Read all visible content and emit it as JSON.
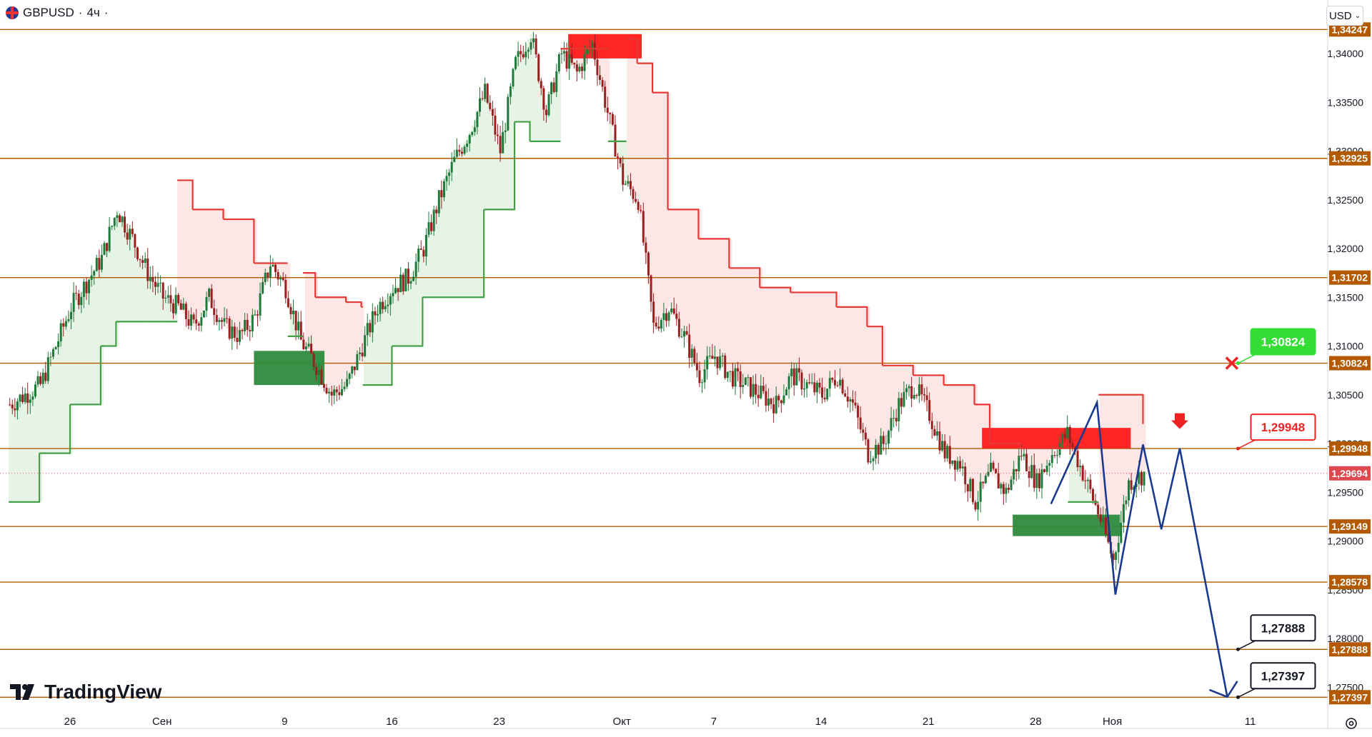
{
  "header": {
    "symbol": "GBPUSD",
    "interval": "4ч",
    "currency": "USD"
  },
  "branding": {
    "logo_text": "TradingView"
  },
  "colors": {
    "level_line": "#b35a00",
    "level_tag_bg": "#b35a00",
    "bull_candle": "#1e7a39",
    "bear_candle": "#9a2020",
    "supertrend_up": "#43a047",
    "supertrend_down": "#e53935",
    "fill_up": "#e6f4e6",
    "fill_down": "#fde6e6",
    "zone_supply": "#ff1a1a",
    "zone_demand": "#2e8b3e",
    "forecast": "#1a3a8f",
    "current_price": "#e0484f",
    "label_green": "#33dd33",
    "label_red": "#ee2222",
    "label_black": "#131722"
  },
  "chart_data": {
    "type": "candlestick",
    "symbol": "GBPUSD",
    "timeframe": "4ч",
    "ylim": [
      1.2705,
      1.3443
    ],
    "y_ticks": [
      1.34,
      1.335,
      1.33,
      1.325,
      1.32,
      1.315,
      1.31,
      1.305,
      1.3,
      1.295,
      1.29,
      1.285,
      1.28,
      1.275
    ],
    "y_tick_labels": [
      "1,34000",
      "1,33500",
      "1,33000",
      "1,32500",
      "1,32000",
      "1,31500",
      "1,31000",
      "1,30500",
      "1,30000",
      "1,29500",
      "1,29000",
      "1,28500",
      "1,28000",
      "1,27500"
    ],
    "x_tick_labels": [
      {
        "label": "26",
        "day": 0
      },
      {
        "label": "Сен",
        "day": 6
      },
      {
        "label": "9",
        "day": 14
      },
      {
        "label": "16",
        "day": 21
      },
      {
        "label": "23",
        "day": 28
      },
      {
        "label": "Окт",
        "day": 36
      },
      {
        "label": "7",
        "day": 42
      },
      {
        "label": "14",
        "day": 49
      },
      {
        "label": "21",
        "day": 56
      },
      {
        "label": "28",
        "day": 63
      },
      {
        "label": "Ноя",
        "day": 68
      },
      {
        "label": "11",
        "day": 77
      }
    ],
    "close_path": [
      [
        -4,
        1.304
      ],
      [
        -2,
        1.306
      ],
      [
        0,
        1.314
      ],
      [
        2,
        1.319
      ],
      [
        3,
        1.324
      ],
      [
        4,
        1.321
      ],
      [
        5,
        1.3175
      ],
      [
        6,
        1.315
      ],
      [
        7,
        1.314
      ],
      [
        8,
        1.312
      ],
      [
        9,
        1.315
      ],
      [
        10,
        1.312
      ],
      [
        11,
        1.311
      ],
      [
        12,
        1.313
      ],
      [
        13,
        1.3185
      ],
      [
        14,
        1.316
      ],
      [
        15,
        1.3105
      ],
      [
        16,
        1.308
      ],
      [
        17,
        1.305
      ],
      [
        18,
        1.306
      ],
      [
        19,
        1.31
      ],
      [
        20,
        1.314
      ],
      [
        21,
        1.316
      ],
      [
        22,
        1.317
      ],
      [
        23,
        1.32
      ],
      [
        24,
        1.325
      ],
      [
        25,
        1.329
      ],
      [
        26,
        1.332
      ],
      [
        27,
        1.336
      ],
      [
        28,
        1.33
      ],
      [
        29,
        1.339
      ],
      [
        30,
        1.342
      ],
      [
        31,
        1.334
      ],
      [
        32,
        1.34
      ],
      [
        33,
        1.338
      ],
      [
        34,
        1.341
      ],
      [
        35,
        1.334
      ],
      [
        36,
        1.327
      ],
      [
        37,
        1.325
      ],
      [
        38,
        1.312
      ],
      [
        39,
        1.314
      ],
      [
        40,
        1.311
      ],
      [
        41,
        1.307
      ],
      [
        42,
        1.309
      ],
      [
        43,
        1.307
      ],
      [
        44,
        1.306
      ],
      [
        45,
        1.305
      ],
      [
        46,
        1.304
      ],
      [
        47,
        1.307
      ],
      [
        48,
        1.306
      ],
      [
        49,
        1.305
      ],
      [
        50,
        1.307
      ],
      [
        51,
        1.304
      ],
      [
        52,
        1.299
      ],
      [
        53,
        1.3
      ],
      [
        54,
        1.304
      ],
      [
        55,
        1.306
      ],
      [
        56,
        1.303
      ],
      [
        57,
        1.299
      ],
      [
        58,
        1.298
      ],
      [
        59,
        1.294
      ],
      [
        60,
        1.297
      ],
      [
        61,
        1.295
      ],
      [
        62,
        1.299
      ],
      [
        63,
        1.296
      ],
      [
        64,
        1.299
      ],
      [
        65,
        1.301
      ],
      [
        66,
        1.297
      ],
      [
        67,
        1.293
      ],
      [
        68,
        1.288
      ],
      [
        69,
        1.296
      ],
      [
        70,
        1.2969
      ]
    ],
    "supertrend": [
      {
        "day": -4,
        "value": 1.294,
        "dir": "up"
      },
      {
        "day": -2,
        "value": 1.299,
        "dir": "up"
      },
      {
        "day": 0,
        "value": 1.304,
        "dir": "up"
      },
      {
        "day": 2,
        "value": 1.31,
        "dir": "up"
      },
      {
        "day": 3,
        "value": 1.3125,
        "dir": "up"
      },
      {
        "day": 5,
        "value": 1.3125,
        "dir": "up"
      },
      {
        "day": 6,
        "value": 1.3125,
        "dir": "up"
      },
      {
        "day": 7,
        "value": 1.327,
        "dir": "down"
      },
      {
        "day": 8,
        "value": 1.324,
        "dir": "down"
      },
      {
        "day": 10,
        "value": 1.323,
        "dir": "down"
      },
      {
        "day": 12,
        "value": 1.3185,
        "dir": "down"
      },
      {
        "day": 14,
        "value": 1.3185,
        "dir": "down"
      },
      {
        "day": 14.2,
        "value": 1.311,
        "dir": "up"
      },
      {
        "day": 15,
        "value": 1.311,
        "dir": "up"
      },
      {
        "day": 15.2,
        "value": 1.3175,
        "dir": "down"
      },
      {
        "day": 16,
        "value": 1.315,
        "dir": "down"
      },
      {
        "day": 18,
        "value": 1.3145,
        "dir": "down"
      },
      {
        "day": 19,
        "value": 1.314,
        "dir": "down"
      },
      {
        "day": 19.1,
        "value": 1.306,
        "dir": "up"
      },
      {
        "day": 21,
        "value": 1.31,
        "dir": "up"
      },
      {
        "day": 23,
        "value": 1.315,
        "dir": "up"
      },
      {
        "day": 25,
        "value": 1.315,
        "dir": "up"
      },
      {
        "day": 27,
        "value": 1.324,
        "dir": "up"
      },
      {
        "day": 29,
        "value": 1.333,
        "dir": "up"
      },
      {
        "day": 30,
        "value": 1.331,
        "dir": "up"
      },
      {
        "day": 32,
        "value": 1.3405,
        "dir": "down"
      },
      {
        "day": 35,
        "value": 1.3405,
        "dir": "down"
      },
      {
        "day": 35.1,
        "value": 1.331,
        "dir": "up"
      },
      {
        "day": 36.3,
        "value": 1.331,
        "dir": "up"
      },
      {
        "day": 36.3,
        "value": 1.3415,
        "dir": "down"
      },
      {
        "day": 37,
        "value": 1.339,
        "dir": "down"
      },
      {
        "day": 38,
        "value": 1.336,
        "dir": "down"
      },
      {
        "day": 39,
        "value": 1.324,
        "dir": "down"
      },
      {
        "day": 41,
        "value": 1.321,
        "dir": "down"
      },
      {
        "day": 43,
        "value": 1.318,
        "dir": "down"
      },
      {
        "day": 45,
        "value": 1.316,
        "dir": "down"
      },
      {
        "day": 47,
        "value": 1.3155,
        "dir": "down"
      },
      {
        "day": 50,
        "value": 1.314,
        "dir": "down"
      },
      {
        "day": 52,
        "value": 1.312,
        "dir": "down"
      },
      {
        "day": 53,
        "value": 1.308,
        "dir": "down"
      },
      {
        "day": 55,
        "value": 1.307,
        "dir": "down"
      },
      {
        "day": 57,
        "value": 1.306,
        "dir": "down"
      },
      {
        "day": 59,
        "value": 1.304,
        "dir": "down"
      },
      {
        "day": 60,
        "value": 1.3,
        "dir": "down"
      },
      {
        "day": 62,
        "value": 1.2995,
        "dir": "down"
      },
      {
        "day": 64,
        "value": 1.2995,
        "dir": "down"
      },
      {
        "day": 65,
        "value": 1.2995,
        "dir": "down"
      },
      {
        "day": 65.1,
        "value": 1.294,
        "dir": "up"
      },
      {
        "day": 67,
        "value": 1.294,
        "dir": "up"
      },
      {
        "day": 67.1,
        "value": 1.305,
        "dir": "down"
      },
      {
        "day": 70,
        "value": 1.302,
        "dir": "down"
      }
    ],
    "zones": [
      {
        "type": "supply",
        "day_start": 32.5,
        "day_end": 37.3,
        "top": 1.342,
        "bottom": 1.3395
      },
      {
        "type": "demand",
        "day_start": 12,
        "day_end": 16.6,
        "top": 1.3095,
        "bottom": 1.306
      },
      {
        "type": "supply",
        "day_start": 59.5,
        "day_end": 69.2,
        "top": 1.3016,
        "bottom": 1.2995
      },
      {
        "type": "demand",
        "day_start": 61.5,
        "day_end": 68.5,
        "top": 1.2927,
        "bottom": 1.2905
      }
    ],
    "levels": [
      {
        "value": 1.34247,
        "label": "1,34247"
      },
      {
        "value": 1.32925,
        "label": "1,32925"
      },
      {
        "value": 1.31702,
        "label": "1,31702"
      },
      {
        "value": 1.30824,
        "label": "1,30824"
      },
      {
        "value": 1.29948,
        "label": "1,29948"
      },
      {
        "value": 1.29149,
        "label": "1,29149"
      },
      {
        "value": 1.28578,
        "label": "1,28578"
      },
      {
        "value": 1.27888,
        "label": "1,27888"
      },
      {
        "value": 1.27397,
        "label": "1,27397"
      }
    ],
    "current_price": {
      "value": 1.29694,
      "label": "1,29694"
    },
    "forecast_path": [
      [
        64,
        1.2938
      ],
      [
        67,
        1.3042
      ],
      [
        68.2,
        1.2845
      ],
      [
        70,
        1.2999
      ],
      [
        71.2,
        1.2912
      ],
      [
        72.4,
        1.2995
      ],
      [
        75.5,
        1.274
      ]
    ],
    "annotations": [
      {
        "day": 76.2,
        "value": 1.30824,
        "label": "1,30824",
        "style": "green"
      },
      {
        "day": 76.2,
        "value": 1.29948,
        "label": "1,29948",
        "style": "red"
      },
      {
        "day": 76.2,
        "value": 1.27888,
        "label": "1,27888",
        "style": "black"
      },
      {
        "day": 76.2,
        "value": 1.27397,
        "label": "1,27397",
        "style": "black"
      }
    ],
    "markers": [
      {
        "type": "cross",
        "day": 75.8,
        "value": 1.30824
      },
      {
        "type": "down-arrow",
        "day": 72.4,
        "value": 1.3012
      }
    ]
  }
}
